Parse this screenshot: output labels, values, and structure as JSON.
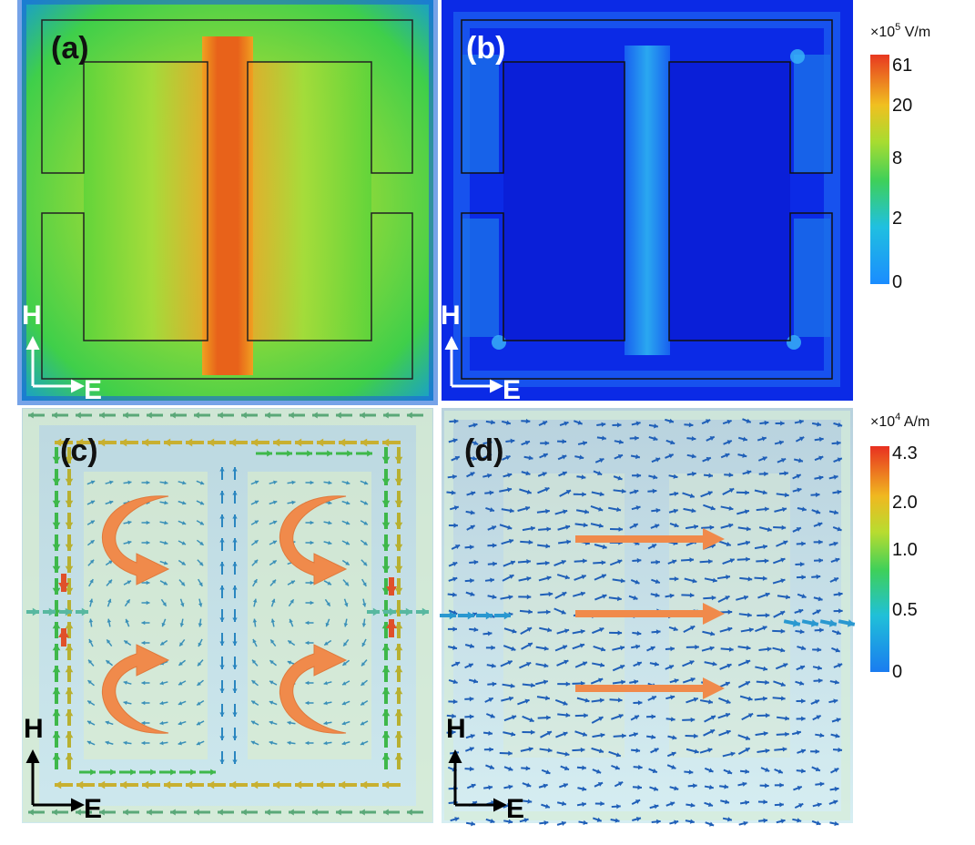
{
  "panels": {
    "a": {
      "label": "(a)",
      "axis_h": "H",
      "axis_e": "E"
    },
    "b": {
      "label": "(b)",
      "axis_h": "H",
      "axis_e": "E"
    },
    "c": {
      "label": "(c)",
      "axis_h": "H",
      "axis_e": "E"
    },
    "d": {
      "label": "(d)",
      "axis_h": "H",
      "axis_e": "E"
    }
  },
  "colorbars": {
    "efield": {
      "title_prefix": "×10",
      "title_exp": "5",
      "title_unit": " V/m",
      "ticks": [
        "61",
        "20",
        "8",
        "2",
        "0"
      ]
    },
    "current": {
      "title_prefix": "×10",
      "title_exp": "4",
      "title_unit": " A/m",
      "ticks": [
        "4.3",
        "2.0",
        "1.0",
        "0.5",
        "0"
      ]
    }
  },
  "colors": {
    "arrow_orange": "#F08A4B",
    "field_blue": "#0B1FE0",
    "outline": "#222222"
  }
}
